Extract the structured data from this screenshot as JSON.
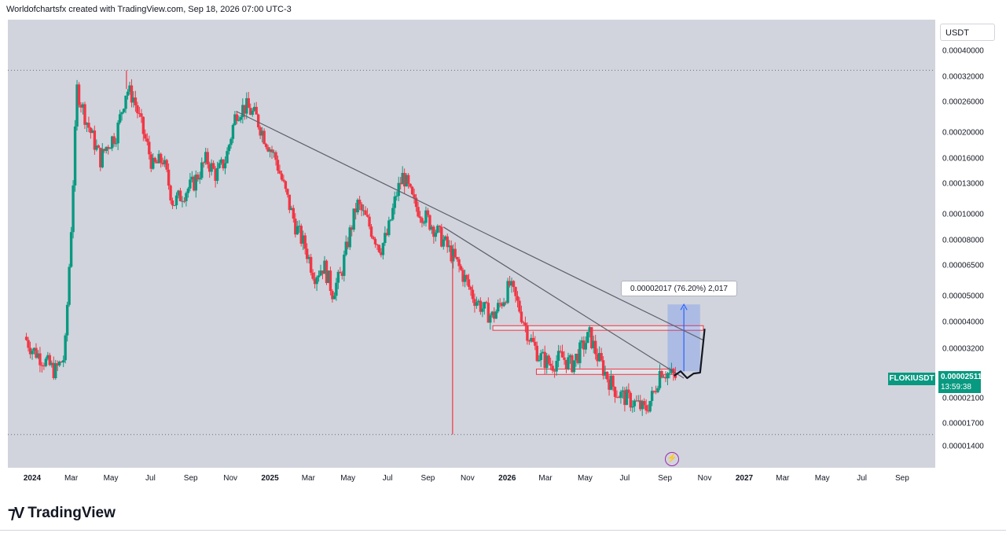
{
  "header": {
    "caption": "Worldofchartsfx created with TradingView.com, Sep 18, 2026 07:00 UTC-3"
  },
  "chart_data": {
    "type": "candlestick",
    "symbol": "FLOKIUSDT",
    "currency": "USDT",
    "scale": "log",
    "last_price": "0.00002511",
    "countdown": "13:59:38",
    "price_ticks": [
      "0.00040000",
      "0.00032000",
      "0.00026000",
      "0.00020000",
      "0.00016000",
      "0.00013000",
      "0.00010000",
      "0.00008000",
      "0.00006500",
      "0.00005000",
      "0.00004000",
      "0.00003200",
      "0.00002100",
      "0.00001700",
      "0.00001400"
    ],
    "time_ticks": [
      {
        "label": "2024",
        "bold": true
      },
      {
        "label": "Mar",
        "bold": false
      },
      {
        "label": "May",
        "bold": false
      },
      {
        "label": "Jul",
        "bold": false
      },
      {
        "label": "Sep",
        "bold": false
      },
      {
        "label": "Nov",
        "bold": false
      },
      {
        "label": "2025",
        "bold": true
      },
      {
        "label": "Mar",
        "bold": false
      },
      {
        "label": "May",
        "bold": false
      },
      {
        "label": "Jul",
        "bold": false
      },
      {
        "label": "Sep",
        "bold": false
      },
      {
        "label": "Nov",
        "bold": false
      },
      {
        "label": "2026",
        "bold": true
      },
      {
        "label": "Mar",
        "bold": false
      },
      {
        "label": "May",
        "bold": false
      },
      {
        "label": "Jul",
        "bold": false
      },
      {
        "label": "Sep",
        "bold": false
      },
      {
        "label": "Nov",
        "bold": false
      },
      {
        "label": "2027",
        "bold": true
      },
      {
        "label": "Mar",
        "bold": false
      },
      {
        "label": "May",
        "bold": false
      },
      {
        "label": "Jul",
        "bold": false
      },
      {
        "label": "Sep",
        "bold": false
      }
    ],
    "price_path": [
      [
        "2023-12-20",
        3.55e-05
      ],
      [
        "2024-01-01",
        3.2e-05
      ],
      [
        "2024-01-20",
        2.9e-05
      ],
      [
        "2024-02-05",
        2.65e-05
      ],
      [
        "2024-02-20",
        3e-05
      ],
      [
        "2024-03-01",
        9e-05
      ],
      [
        "2024-03-10",
        0.00029
      ],
      [
        "2024-03-25",
        0.00022
      ],
      [
        "2024-04-15",
        0.00016
      ],
      [
        "2024-04-25",
        0.00018
      ],
      [
        "2024-05-10",
        0.0002
      ],
      [
        "2024-05-25",
        0.00029
      ],
      [
        "2024-06-05",
        0.00027
      ],
      [
        "2024-06-20",
        0.0002
      ],
      [
        "2024-07-05",
        0.00015
      ],
      [
        "2024-07-20",
        0.00016
      ],
      [
        "2024-08-05",
        0.00011
      ],
      [
        "2024-08-20",
        0.00012
      ],
      [
        "2024-09-05",
        0.00013
      ],
      [
        "2024-09-25",
        0.00016
      ],
      [
        "2024-10-10",
        0.00014
      ],
      [
        "2024-10-25",
        0.00016
      ],
      [
        "2024-11-10",
        0.00024
      ],
      [
        "2024-11-25",
        0.00025
      ],
      [
        "2024-12-10",
        0.00023
      ],
      [
        "2024-12-25",
        0.00019
      ],
      [
        "2025-01-10",
        0.00016
      ],
      [
        "2025-01-25",
        0.00012
      ],
      [
        "2025-02-10",
        9e-05
      ],
      [
        "2025-02-25",
        7.5e-05
      ],
      [
        "2025-03-10",
        6e-05
      ],
      [
        "2025-03-25",
        6.5e-05
      ],
      [
        "2025-04-07",
        5.2e-05
      ],
      [
        "2025-04-20",
        6e-05
      ],
      [
        "2025-05-01",
        8e-05
      ],
      [
        "2025-05-15",
        0.00011
      ],
      [
        "2025-05-30",
        9.5e-05
      ],
      [
        "2025-06-20",
        7.5e-05
      ],
      [
        "2025-07-01",
        8.5e-05
      ],
      [
        "2025-07-15",
        0.00012
      ],
      [
        "2025-07-25",
        0.00014
      ],
      [
        "2025-08-10",
        0.00011
      ],
      [
        "2025-08-25",
        0.0001
      ],
      [
        "2025-09-10",
        9e-05
      ],
      [
        "2025-09-25",
        8e-05
      ],
      [
        "2025-10-10",
        7e-05
      ],
      [
        "2025-10-25",
        6e-05
      ],
      [
        "2025-11-10",
        5e-05
      ],
      [
        "2025-11-25",
        4.5e-05
      ],
      [
        "2025-12-10",
        4.2e-05
      ],
      [
        "2025-12-28",
        5e-05
      ],
      [
        "2026-01-05",
        5.5e-05
      ],
      [
        "2026-01-20",
        4.5e-05
      ],
      [
        "2026-02-05",
        3.5e-05
      ],
      [
        "2026-02-20",
        3e-05
      ],
      [
        "2026-03-10",
        2.8e-05
      ],
      [
        "2026-03-25",
        3e-05
      ],
      [
        "2026-04-10",
        2.8e-05
      ],
      [
        "2026-04-25",
        3.2e-05
      ],
      [
        "2026-05-08",
        3.6e-05
      ],
      [
        "2026-05-20",
        3e-05
      ],
      [
        "2026-06-05",
        2.5e-05
      ],
      [
        "2026-06-20",
        2.2e-05
      ],
      [
        "2026-07-05",
        2.1e-05
      ],
      [
        "2026-07-20",
        2e-05
      ],
      [
        "2026-08-01",
        1.9e-05
      ],
      [
        "2026-08-15",
        2.2e-05
      ],
      [
        "2026-08-25",
        2.7e-05
      ],
      [
        "2026-09-05",
        2.6e-05
      ],
      [
        "2026-09-18",
        2.511e-05
      ]
    ],
    "wick_extremes": [
      {
        "date": "2024-05-25",
        "high": 0.00034
      },
      {
        "date": "2025-10-09",
        "low": 1.55e-05
      }
    ],
    "trendlines": [
      {
        "from": [
          "2024-11-10",
          0.00024
        ],
        "to": [
          "2026-10-30",
          3.45e-05
        ]
      },
      {
        "from": [
          "2025-09-25",
          9e-05
        ],
        "to": [
          "2026-09-30",
          2.5e-05
        ]
      }
    ],
    "zones": [
      {
        "from": "2025-12-10",
        "to": "2026-10-30",
        "low": 3.75e-05,
        "high": 3.9e-05
      },
      {
        "from": "2026-02-15",
        "to": "2026-09-15",
        "low": 2.58e-05,
        "high": 2.7e-05
      }
    ],
    "measure": {
      "from": [
        "2026-09-05",
        2.65e-05
      ],
      "to": [
        "2026-10-25",
        4.67e-05
      ],
      "label": "0.00002017 (76.20%) 2,017"
    },
    "projection": [
      [
        "2026-09-15",
        2.55e-05
      ],
      [
        "2026-09-25",
        2.65e-05
      ],
      [
        "2026-10-05",
        2.5e-05
      ],
      [
        "2026-10-15",
        2.6e-05
      ],
      [
        "2026-10-25",
        2.62e-05
      ],
      [
        "2026-11-01",
        3.8e-05
      ]
    ],
    "colors": {
      "up": "#089981",
      "down": "#f23645",
      "background": "#d1d4dc",
      "line": "#5d606b",
      "zone": "#f23645",
      "measure": "#2962ff"
    }
  },
  "footer": {
    "brand": "TradingView"
  }
}
